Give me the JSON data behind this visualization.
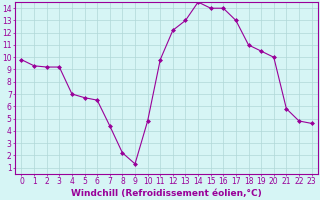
{
  "x": [
    0,
    1,
    2,
    3,
    4,
    5,
    6,
    7,
    8,
    9,
    10,
    11,
    12,
    13,
    14,
    15,
    16,
    17,
    18,
    19,
    20,
    21,
    22,
    23
  ],
  "y": [
    9.8,
    9.3,
    9.2,
    9.2,
    7.0,
    6.7,
    6.5,
    4.4,
    2.2,
    1.3,
    4.8,
    9.8,
    12.2,
    13.0,
    14.5,
    14.0,
    14.0,
    13.0,
    11.0,
    10.5,
    10.0,
    5.8,
    4.8,
    4.6
  ],
  "line_color": "#990099",
  "marker": "D",
  "marker_size": 2,
  "bg_color": "#d6f5f5",
  "grid_color": "#b0d8d8",
  "xlabel": "Windchill (Refroidissement éolien,°C)",
  "xlim": [
    -0.5,
    23.5
  ],
  "ylim_min": 0.5,
  "ylim_max": 14.5,
  "xticks": [
    0,
    1,
    2,
    3,
    4,
    5,
    6,
    7,
    8,
    9,
    10,
    11,
    12,
    13,
    14,
    15,
    16,
    17,
    18,
    19,
    20,
    21,
    22,
    23
  ],
  "yticks": [
    1,
    2,
    3,
    4,
    5,
    6,
    7,
    8,
    9,
    10,
    11,
    12,
    13,
    14
  ],
  "tick_fontsize": 5.5,
  "xlabel_fontsize": 6.5,
  "label_color": "#990099",
  "spine_color": "#990099"
}
